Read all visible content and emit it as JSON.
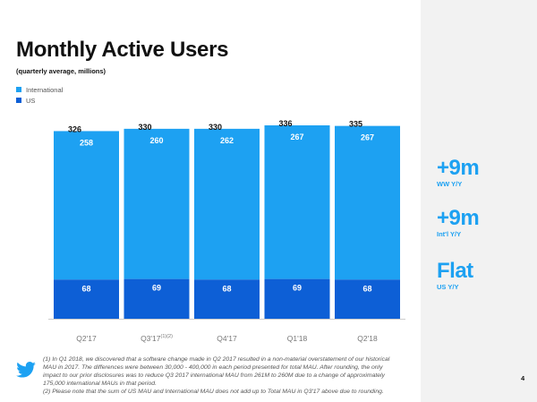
{
  "title": "Monthly Active Users",
  "subtitle": "(quarterly average, millions)",
  "legend": [
    {
      "label": "International",
      "color": "#1da1f2"
    },
    {
      "label": "US",
      "color": "#0d5fd6"
    }
  ],
  "chart_data": {
    "type": "bar",
    "stacked": true,
    "categories": [
      "Q2'17",
      "Q3'17",
      "Q4'17",
      "Q1'18",
      "Q2'18"
    ],
    "category_superscripts": [
      "",
      "(1)(2)",
      "",
      "",
      ""
    ],
    "series": [
      {
        "name": "US",
        "values": [
          68,
          69,
          68,
          69,
          68
        ],
        "color": "#0d5fd6"
      },
      {
        "name": "International",
        "values": [
          258,
          260,
          262,
          267,
          267
        ],
        "color": "#1da1f2"
      }
    ],
    "totals": [
      326,
      330,
      330,
      336,
      335
    ],
    "ylim": [
      0,
      336
    ],
    "grid": false
  },
  "stats": [
    {
      "value": "+9m",
      "label": "WW Y/Y"
    },
    {
      "value": "+9m",
      "label": "Int'l Y/Y"
    },
    {
      "value": "Flat",
      "label": "US Y/Y"
    }
  ],
  "footnotes": [
    "(1) In Q1 2018, we discovered that a software change made in Q2 2017 resulted in a non-material overstatement of our historical MAU in 2017. The differences were between 30,000 - 400,000 in each period presented for total MAU. After rounding, the only impact to our prior disclosures was to reduce Q3 2017 international MAU from 261M to 260M due to a change of approximately 175,000 international MAUs in that period.",
    "(2) Please note that the sum of US MAU and International MAU does not add up to Total MAU in Q3'17 above due to rounding."
  ],
  "page_number": "4",
  "logo_icon": "twitter-bird-icon"
}
